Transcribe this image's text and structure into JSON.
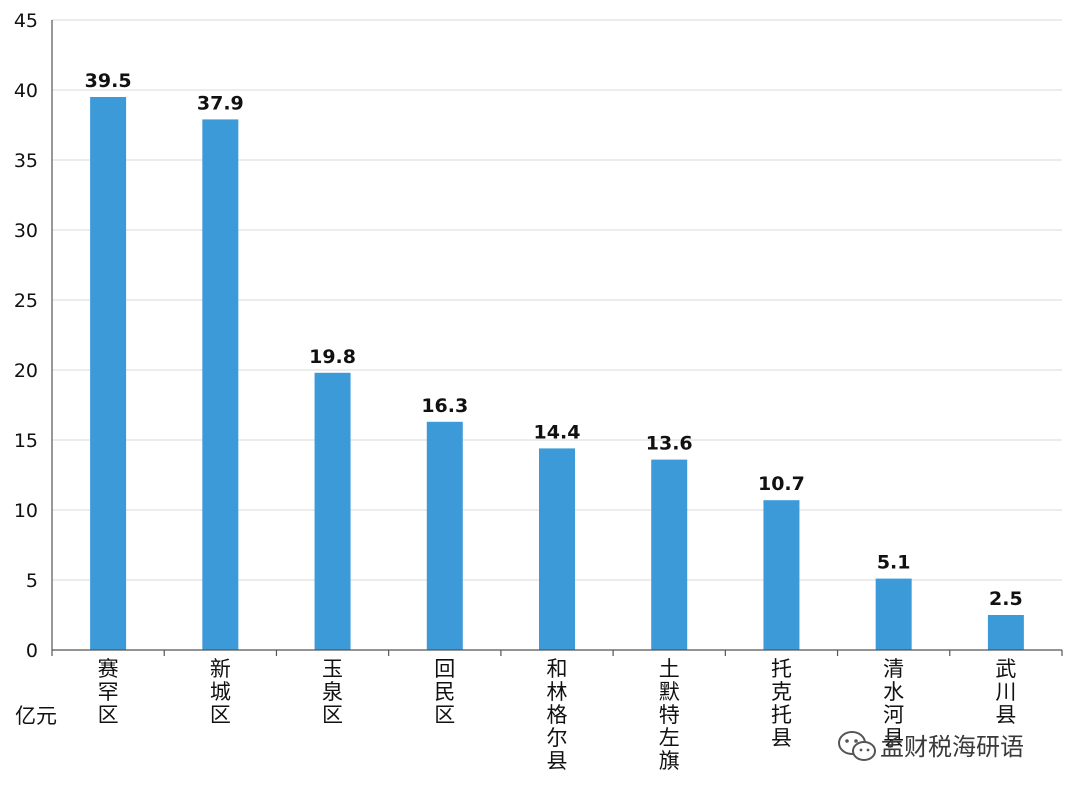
{
  "chart_data": {
    "type": "bar",
    "title": "",
    "xlabel": "",
    "ylabel": "亿元",
    "ylim": [
      0,
      45
    ],
    "yticks": [
      0,
      5,
      10,
      15,
      20,
      25,
      30,
      35,
      40,
      45
    ],
    "grid": true,
    "categories": [
      "赛罕区",
      "新城区",
      "玉泉区",
      "回民区",
      "和林格尔县",
      "土默特左旗",
      "托克托县",
      "清水河县",
      "武川县"
    ],
    "values": [
      39.5,
      37.9,
      19.8,
      16.3,
      14.4,
      13.6,
      10.7,
      5.1,
      2.5
    ],
    "value_labels": [
      "39.5",
      "37.9",
      "19.8",
      "16.3",
      "14.4",
      "13.6",
      "10.7",
      "5.1",
      "2.5"
    ],
    "colors": {
      "bar": "#3d9ad9",
      "grid": "#d9d9d9",
      "axis": "#555555"
    }
  },
  "watermark": {
    "text": "孟财税海研语",
    "icon": "wechat-icon"
  }
}
